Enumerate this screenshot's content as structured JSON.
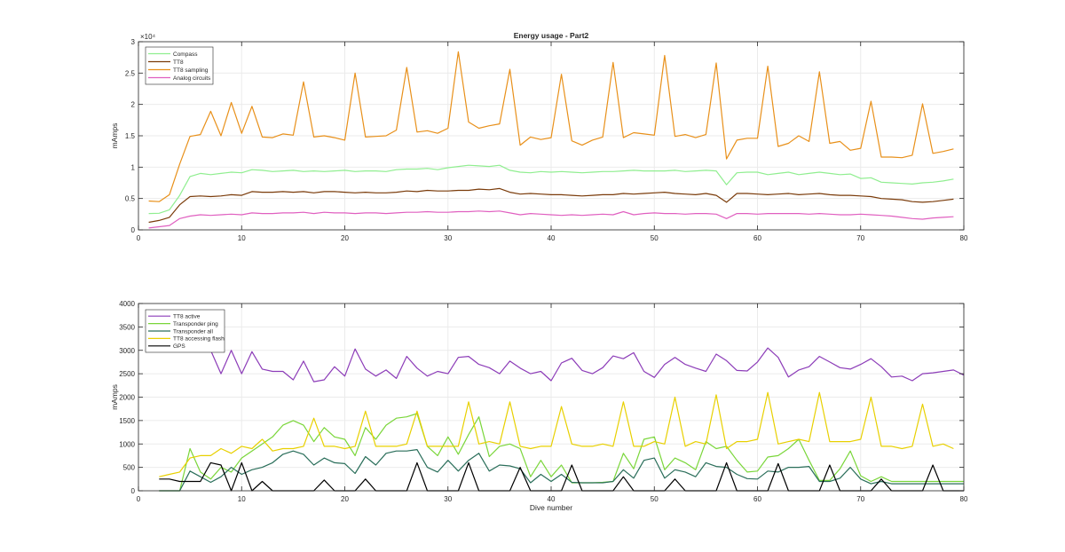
{
  "chart_data": [
    {
      "type": "line",
      "title": "Energy usage - Part2",
      "xlabel": "",
      "ylabel": "mAmps",
      "xlim": [
        0,
        80
      ],
      "ylim": [
        0,
        30000
      ],
      "xticks": [
        0,
        10,
        20,
        30,
        40,
        50,
        60,
        70,
        80
      ],
      "yticks": [
        0,
        5000,
        10000,
        15000,
        20000,
        25000,
        30000
      ],
      "ytick_labels": [
        "0",
        "0.5",
        "1",
        "1.5",
        "2",
        "2.5",
        "3"
      ],
      "exponent_label": "×10⁴",
      "grid": true,
      "legend_position": "top-left",
      "series": [
        {
          "name": "Compass",
          "color": "#90ee90",
          "values": [
            2600,
            2650,
            3200,
            5500,
            8500,
            9000,
            8800,
            9000,
            9200,
            9100,
            9600,
            9500,
            9300,
            9400,
            9500,
            9300,
            9400,
            9300,
            9400,
            9500,
            9300,
            9400,
            9400,
            9300,
            9600,
            9700,
            9700,
            9800,
            9600,
            9900,
            10100,
            10300,
            10200,
            10100,
            10300,
            9500,
            9200,
            9100,
            9300,
            9200,
            9300,
            9200,
            9100,
            9200,
            9300,
            9300,
            9400,
            9500,
            9400,
            9400,
            9400,
            9500,
            9300,
            9400,
            9500,
            9400,
            7200,
            9100,
            9200,
            9200,
            8800,
            9000,
            9200,
            8800,
            9000,
            9200,
            9000,
            8800,
            8900,
            8200,
            8300,
            7600,
            7500,
            7400,
            7300,
            7500,
            7600,
            7800,
            8100
          ]
        },
        {
          "name": "TT8",
          "color": "#7a3b0a",
          "values": [
            1200,
            1500,
            2000,
            4000,
            5300,
            5400,
            5300,
            5400,
            5600,
            5500,
            6100,
            6000,
            6000,
            6100,
            6000,
            6100,
            5900,
            6100,
            6100,
            6000,
            5900,
            6000,
            5900,
            5900,
            6000,
            6200,
            6100,
            6300,
            6200,
            6200,
            6300,
            6300,
            6500,
            6400,
            6600,
            6000,
            5700,
            5800,
            5700,
            5600,
            5600,
            5500,
            5400,
            5500,
            5600,
            5600,
            5800,
            5700,
            5800,
            5900,
            6000,
            5800,
            5700,
            5600,
            5800,
            5500,
            4400,
            5800,
            5800,
            5700,
            5600,
            5700,
            5800,
            5600,
            5700,
            5800,
            5600,
            5500,
            5500,
            5400,
            5300,
            5000,
            4900,
            4800,
            4500,
            4400,
            4500,
            4700,
            4900
          ]
        },
        {
          "name": "TT8 sampling",
          "color": "#e8901a",
          "values": [
            4600,
            4500,
            5600,
            10500,
            14900,
            15200,
            18900,
            15000,
            20300,
            15400,
            19700,
            14800,
            14700,
            15300,
            15100,
            23600,
            14800,
            15000,
            14700,
            14300,
            25000,
            14800,
            14900,
            15000,
            15900,
            25900,
            15600,
            15800,
            15400,
            16200,
            28400,
            17200,
            16200,
            16600,
            16900,
            25600,
            13500,
            14800,
            14400,
            14700,
            24800,
            14200,
            13500,
            14300,
            14800,
            26700,
            14700,
            15500,
            15300,
            15100,
            27800,
            14900,
            15200,
            14700,
            15200,
            26600,
            11300,
            14300,
            14600,
            14600,
            26100,
            13300,
            13800,
            15000,
            14100,
            25200,
            13800,
            14100,
            12700,
            13000,
            20500,
            11600,
            11600,
            11500,
            11900,
            20100,
            12200,
            12500,
            12900
          ]
        },
        {
          "name": "Analog circuits",
          "color": "#e060c0",
          "values": [
            300,
            500,
            700,
            1800,
            2200,
            2400,
            2300,
            2400,
            2500,
            2400,
            2700,
            2600,
            2600,
            2700,
            2700,
            2800,
            2600,
            2800,
            2700,
            2700,
            2600,
            2700,
            2700,
            2600,
            2700,
            2800,
            2800,
            2900,
            2800,
            2800,
            2900,
            2900,
            3000,
            2900,
            3000,
            2700,
            2400,
            2600,
            2500,
            2400,
            2300,
            2400,
            2300,
            2400,
            2500,
            2400,
            2900,
            2400,
            2600,
            2700,
            2600,
            2600,
            2500,
            2600,
            2600,
            2500,
            1800,
            2600,
            2600,
            2500,
            2600,
            2600,
            2600,
            2600,
            2500,
            2600,
            2500,
            2400,
            2400,
            2500,
            2400,
            2300,
            2200,
            2000,
            1800,
            1700,
            1900,
            2000,
            2100
          ]
        }
      ]
    },
    {
      "type": "line",
      "title": "",
      "xlabel": "Dive number",
      "ylabel": "mAmps",
      "xlim": [
        0,
        80
      ],
      "ylim": [
        0,
        4000
      ],
      "xticks": [
        0,
        10,
        20,
        30,
        40,
        50,
        60,
        70,
        80
      ],
      "yticks": [
        0,
        500,
        1000,
        1500,
        2000,
        2500,
        3000,
        3500,
        4000
      ],
      "grid": true,
      "legend_position": "top-left",
      "series": [
        {
          "name": "TT8 active",
          "color": "#8c3cb8",
          "values": [
            null,
            null,
            null,
            null,
            null,
            null,
            3000,
            2500,
            3000,
            2500,
            2970,
            2600,
            2550,
            2550,
            2370,
            2770,
            2330,
            2370,
            2650,
            2450,
            3030,
            2600,
            2450,
            2580,
            2400,
            2870,
            2620,
            2450,
            2550,
            2500,
            2850,
            2870,
            2700,
            2630,
            2500,
            2770,
            2620,
            2500,
            2550,
            2350,
            2730,
            2830,
            2570,
            2500,
            2630,
            2880,
            2820,
            2950,
            2550,
            2420,
            2700,
            2850,
            2700,
            2620,
            2550,
            2920,
            2780,
            2570,
            2560,
            2750,
            3050,
            2850,
            2430,
            2580,
            2650,
            2870,
            2750,
            2630,
            2600,
            2700,
            2820,
            2650,
            2430,
            2450,
            2350,
            2500,
            2520,
            2550,
            2580,
            2470
          ]
        },
        {
          "name": "Transponder ping",
          "color": "#7ad63a",
          "values": [
            null,
            0,
            0,
            0,
            900,
            400,
            250,
            500,
            400,
            700,
            850,
            1000,
            1150,
            1400,
            1500,
            1400,
            1050,
            1350,
            1150,
            1100,
            750,
            1350,
            1100,
            1400,
            1550,
            1580,
            1650,
            950,
            750,
            1150,
            780,
            1200,
            1580,
            730,
            950,
            1000,
            900,
            300,
            650,
            300,
            550,
            170,
            170,
            170,
            180,
            200,
            800,
            470,
            1100,
            1150,
            450,
            700,
            600,
            450,
            1050,
            900,
            950,
            650,
            400,
            420,
            720,
            750,
            900,
            1100,
            650,
            220,
            220,
            470,
            850,
            320,
            200,
            300,
            200,
            200,
            200,
            200,
            200,
            200,
            200,
            200
          ]
        },
        {
          "name": "Transponder all",
          "color": "#2a6e5a",
          "values": [
            null,
            0,
            0,
            0,
            420,
            300,
            180,
            300,
            500,
            350,
            450,
            500,
            600,
            780,
            850,
            780,
            550,
            700,
            600,
            580,
            370,
            730,
            550,
            800,
            850,
            850,
            880,
            500,
            400,
            650,
            420,
            650,
            800,
            420,
            550,
            530,
            470,
            170,
            350,
            200,
            350,
            180,
            170,
            170,
            170,
            200,
            450,
            270,
            650,
            700,
            270,
            450,
            400,
            300,
            600,
            520,
            500,
            350,
            260,
            250,
            420,
            400,
            500,
            500,
            520,
            200,
            200,
            270,
            500,
            250,
            150,
            200,
            150,
            150,
            150,
            150,
            150,
            150,
            150,
            150
          ]
        },
        {
          "name": "TT8 accessing flash",
          "color": "#e8d000",
          "values": [
            null,
            300,
            350,
            400,
            700,
            750,
            750,
            900,
            800,
            950,
            900,
            1100,
            850,
            900,
            900,
            950,
            1550,
            950,
            950,
            900,
            950,
            1700,
            950,
            950,
            950,
            1000,
            1700,
            950,
            950,
            950,
            950,
            1900,
            1000,
            1050,
            1000,
            1900,
            950,
            900,
            950,
            950,
            1800,
            1000,
            950,
            950,
            1000,
            950,
            1900,
            950,
            950,
            1050,
            1000,
            2000,
            950,
            1050,
            1000,
            2050,
            900,
            1050,
            1050,
            1100,
            2100,
            1000,
            1050,
            1100,
            1050,
            2100,
            1050,
            1050,
            1050,
            1100,
            2000,
            950,
            950,
            900,
            950,
            1850,
            950,
            1000,
            900
          ]
        },
        {
          "name": "GPS",
          "color": "#000000",
          "values": [
            null,
            250,
            250,
            200,
            200,
            200,
            600,
            550,
            0,
            600,
            0,
            200,
            0,
            0,
            0,
            0,
            0,
            230,
            0,
            0,
            0,
            250,
            0,
            0,
            0,
            0,
            600,
            0,
            0,
            0,
            0,
            600,
            0,
            0,
            0,
            0,
            500,
            0,
            0,
            0,
            0,
            550,
            0,
            0,
            0,
            0,
            300,
            0,
            0,
            0,
            0,
            250,
            0,
            0,
            0,
            0,
            600,
            0,
            0,
            0,
            0,
            580,
            0,
            0,
            0,
            0,
            550,
            0,
            0,
            0,
            0,
            250,
            0,
            0,
            0,
            0,
            550,
            0,
            0,
            0
          ]
        }
      ]
    }
  ]
}
